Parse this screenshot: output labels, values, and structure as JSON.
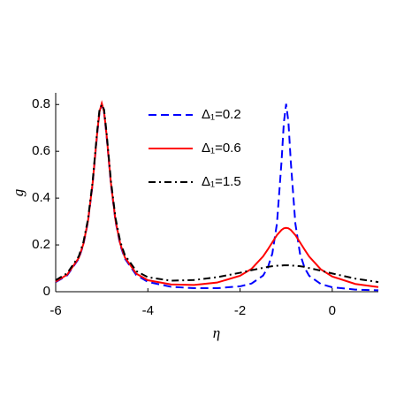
{
  "chart_data": {
    "type": "line",
    "x_label": "η",
    "y_label": "g",
    "x": [
      -6,
      -5.75,
      -5.5,
      -5.4,
      -5.3,
      -5.2,
      -5.1,
      -5.05,
      -5,
      -4.95,
      -4.9,
      -4.8,
      -4.7,
      -4.6,
      -4.5,
      -4.25,
      -4,
      -3.5,
      -3,
      -2.5,
      -2,
      -1.75,
      -1.5,
      -1.4,
      -1.3,
      -1.2,
      -1.1,
      -1.05,
      -1,
      -0.95,
      -0.9,
      -0.8,
      -0.7,
      -0.6,
      -0.5,
      -0.25,
      0,
      0.5,
      1
    ],
    "series": [
      {
        "name": "Δ₁=0.2",
        "color": "#0000ff",
        "linestyle": "dashed",
        "values": [
          0.041,
          0.07,
          0.141,
          0.2,
          0.298,
          0.457,
          0.674,
          0.765,
          0.801,
          0.765,
          0.674,
          0.457,
          0.298,
          0.2,
          0.142,
          0.071,
          0.042,
          0.021,
          0.015,
          0.015,
          0.023,
          0.035,
          0.069,
          0.102,
          0.163,
          0.291,
          0.557,
          0.723,
          0.803,
          0.723,
          0.557,
          0.291,
          0.163,
          0.102,
          0.068,
          0.033,
          0.019,
          0.009,
          0.006
        ]
      },
      {
        "name": "Δ₁=0.6",
        "color": "#ff0000",
        "linestyle": "solid",
        "values": [
          0.043,
          0.073,
          0.144,
          0.203,
          0.301,
          0.461,
          0.678,
          0.769,
          0.805,
          0.769,
          0.678,
          0.462,
          0.302,
          0.205,
          0.147,
          0.077,
          0.049,
          0.031,
          0.029,
          0.039,
          0.068,
          0.098,
          0.151,
          0.18,
          0.211,
          0.242,
          0.264,
          0.271,
          0.273,
          0.271,
          0.264,
          0.242,
          0.211,
          0.18,
          0.15,
          0.096,
          0.065,
          0.033,
          0.02
        ]
      },
      {
        "name": "Δ₁=1.5",
        "color": "#000000",
        "linestyle": "dashdot",
        "values": [
          0.049,
          0.079,
          0.151,
          0.211,
          0.309,
          0.468,
          0.686,
          0.777,
          0.8,
          0.778,
          0.687,
          0.471,
          0.313,
          0.215,
          0.157,
          0.088,
          0.062,
          0.047,
          0.05,
          0.062,
          0.081,
          0.092,
          0.102,
          0.106,
          0.109,
          0.111,
          0.112,
          0.113,
          0.113,
          0.113,
          0.112,
          0.111,
          0.109,
          0.106,
          0.101,
          0.09,
          0.078,
          0.056,
          0.041
        ]
      }
    ],
    "xlim": [
      -6,
      1
    ],
    "ylim": [
      0,
      0.85
    ],
    "xticks": [
      -6,
      -4,
      -2,
      0
    ],
    "yticks": [
      0,
      0.2,
      0.4,
      0.6,
      0.8
    ],
    "grid": false
  }
}
